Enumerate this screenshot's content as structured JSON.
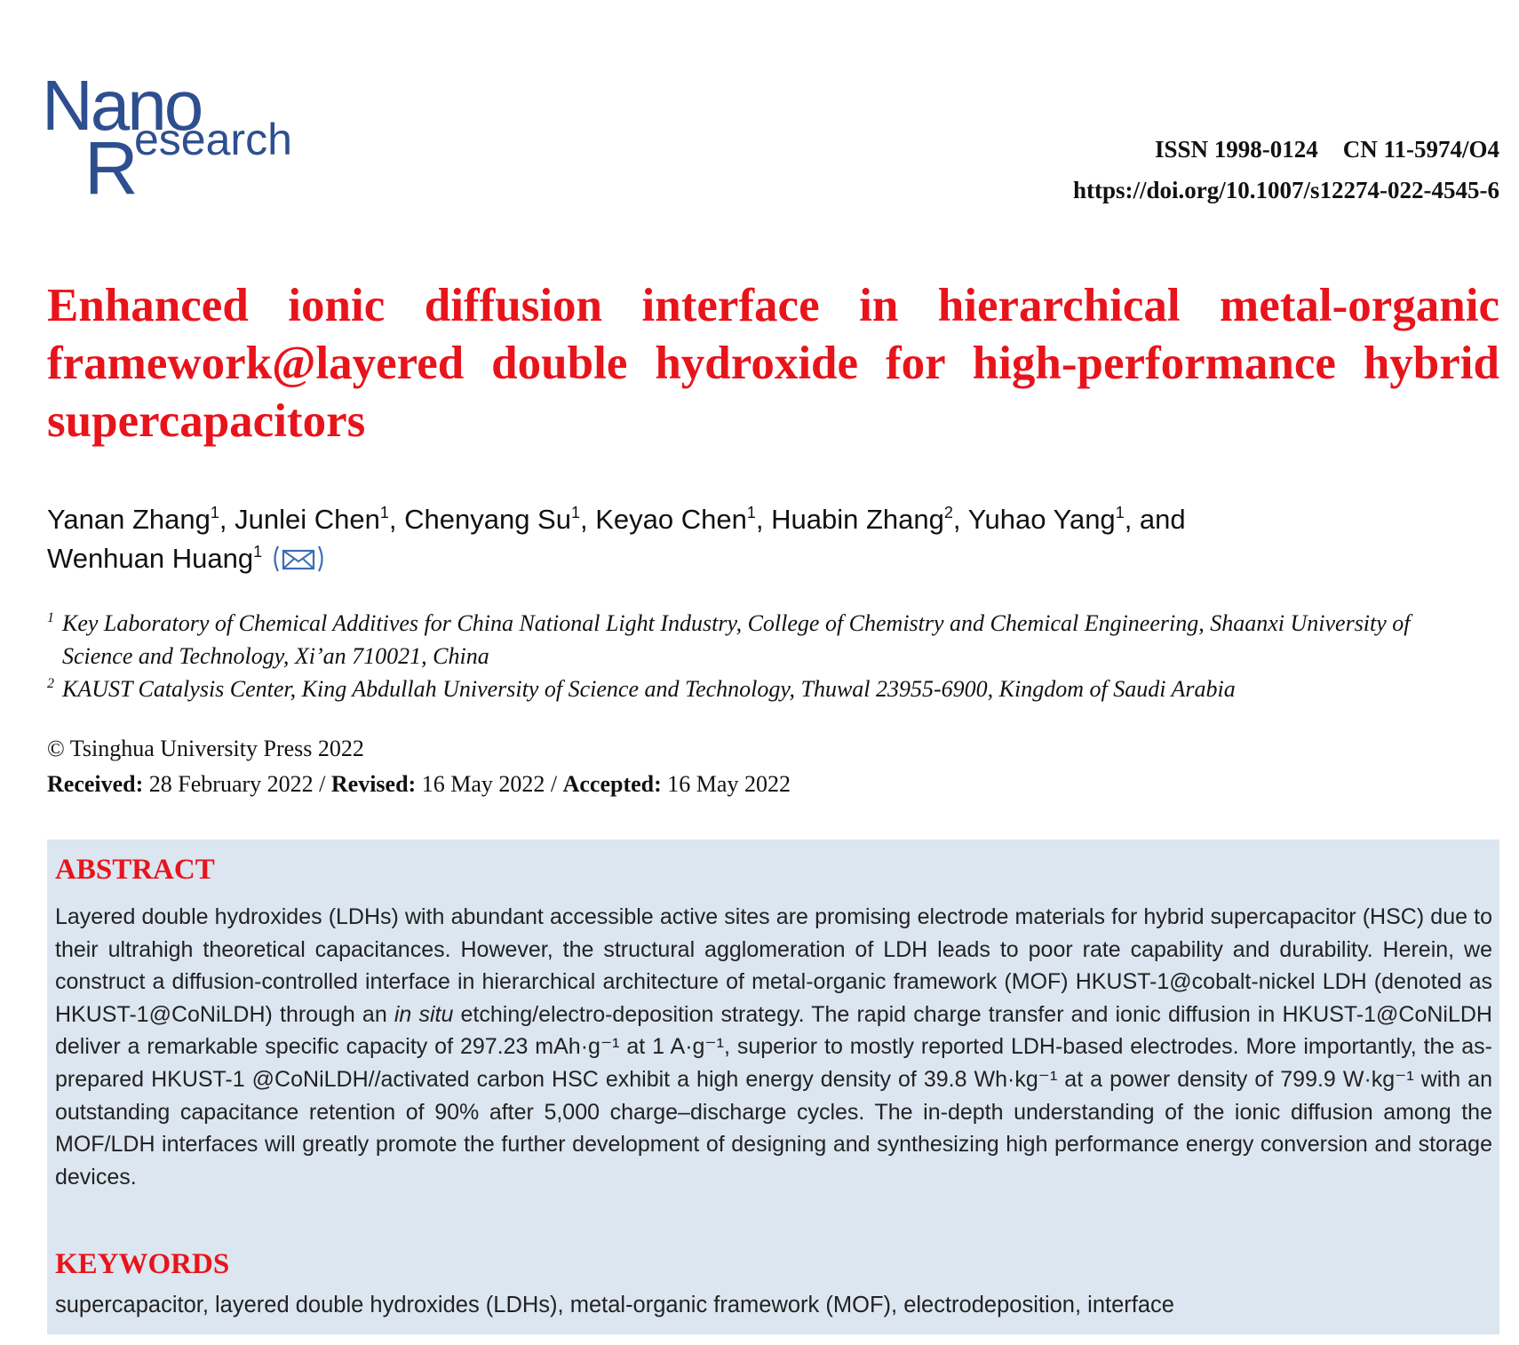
{
  "header": {
    "logo": {
      "top": "Nano",
      "initial": "R",
      "rest": "esearch"
    },
    "issn": "ISSN 1998-0124",
    "cn": "CN 11-5974/O4",
    "doi": "https://doi.org/10.1007/s12274-022-4545-6"
  },
  "title": "Enhanced ionic diffusion interface in hierarchical metal-organic framework@layered double hydroxide for high-performance hybrid supercapacitors",
  "authors": [
    {
      "name": "Yanan Zhang",
      "affiliation": "1",
      "separator": ","
    },
    {
      "name": "Junlei Chen",
      "affiliation": "1",
      "separator": ","
    },
    {
      "name": "Chenyang Su",
      "affiliation": "1",
      "separator": ","
    },
    {
      "name": "Keyao Chen",
      "affiliation": "1",
      "separator": ","
    },
    {
      "name": "Huabin Zhang",
      "affiliation": "2",
      "separator": ","
    },
    {
      "name": "Yuhao Yang",
      "affiliation": "1",
      "separator": ", and"
    },
    {
      "name": "Wenhuan Huang",
      "affiliation": "1",
      "separator": ""
    }
  ],
  "affiliations": [
    {
      "mark": "1",
      "text": "Key Laboratory of Chemical Additives for China National Light Industry, College of Chemistry and Chemical Engineering, Shaanxi University of Science and Technology, Xi’an 710021, China"
    },
    {
      "mark": "2",
      "text": "KAUST Catalysis Center, King Abdullah University of Science and Technology, Thuwal 23955-6900, Kingdom of Saudi Arabia"
    }
  ],
  "copyright": "© Tsinghua University Press 2022",
  "history": [
    {
      "label": "Received:",
      "date": "28 February 2022"
    },
    {
      "label": "Revised:",
      "date": "16 May 2022"
    },
    {
      "label": "Accepted:",
      "date": "16 May 2022"
    }
  ],
  "history_separator": "/",
  "abstract": {
    "heading": "ABSTRACT",
    "text": [
      "Layered double hydroxides (LDHs) with abundant accessible active sites are promising electrode materials for hybrid supercapacitor (HSC) due to their ultrahigh theoretical capacitances. However, the structural agglomeration of LDH leads to poor rate capability and durability. Herein, we construct a diffusion-controlled interface in hierarchical architecture of metal-organic framework (MOF) HKUST-1@cobalt-nickel LDH (denoted as HKUST-1@CoNiLDH) through an ",
      "in situ",
      " etching/electro-deposition strategy. The rapid charge transfer and ionic diffusion in HKUST-1@CoNiLDH deliver a remarkable specific capacity of 297.23 mAh·g⁻¹ at 1 A·g⁻¹, superior to mostly reported LDH-based electrodes. More importantly, the as-prepared HKUST-1 @CoNiLDH//activated carbon HSC exhibit a high energy density of 39.8 Wh·kg⁻¹ at a power density of 799.9 W·kg⁻¹ with an outstanding capacitance retention of 90% after 5,000 charge–discharge cycles. The in-depth understanding of the ionic diffusion among the MOF/LDH interfaces will greatly promote the further development of designing and synthesizing high performance energy conversion and storage devices."
    ]
  },
  "keywords": {
    "heading": "KEYWORDS",
    "text": "supercapacitor, layered double hydroxides (LDHs), metal-organic framework (MOF), electrodeposition, interface"
  }
}
